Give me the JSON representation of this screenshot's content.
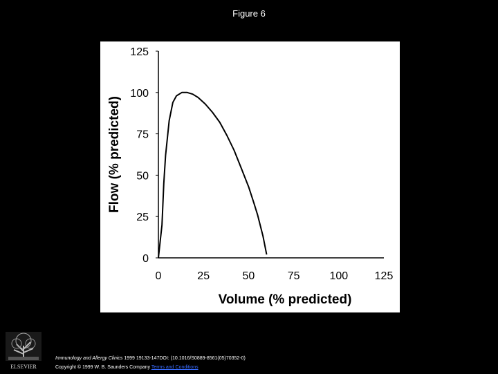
{
  "page": {
    "title": "Figure 6"
  },
  "chart_data": {
    "type": "line",
    "title": "",
    "xlabel": "Volume (% predicted)",
    "ylabel": "Flow (% predicted)",
    "xlim": [
      0,
      125
    ],
    "ylim": [
      0,
      125
    ],
    "xticks": [
      "0",
      "25",
      "50",
      "75",
      "100",
      "125"
    ],
    "yticks": [
      "0",
      "25",
      "50",
      "75",
      "100",
      "125"
    ],
    "grid": false,
    "series": [
      {
        "x": [
          0,
          2,
          3,
          4,
          6,
          8,
          10,
          13,
          16,
          19,
          22,
          26,
          30,
          34,
          38,
          42,
          46,
          50,
          53,
          55,
          58,
          60
        ],
        "y": [
          0,
          20,
          45,
          62,
          83,
          94,
          98,
          100,
          100,
          99,
          97,
          93,
          88,
          82,
          74,
          65,
          54,
          43,
          33,
          26,
          13,
          2
        ]
      }
    ],
    "line_color": "#000000"
  },
  "footer": {
    "journal": "Immunology and Allergy Clinics",
    "citation": " 1999 19133-147DOI: (10.1016/S0889-8561(05)70352-0)",
    "copyright": "Copyright © 1999 W. B. Saunders Company ",
    "terms_link": "Terms and Conditions"
  },
  "logo": {
    "publisher": "ELSEVIER",
    "icon": "elsevier-tree-icon"
  },
  "colors": {
    "background": "#000000",
    "plot_background": "#ffffff",
    "link": "#3a6cff"
  }
}
